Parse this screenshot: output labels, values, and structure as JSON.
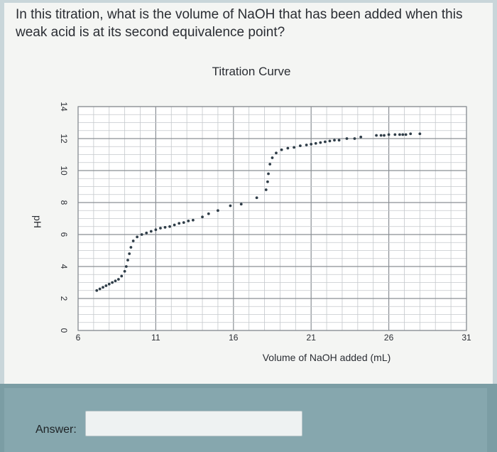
{
  "question": {
    "text": "In this titration, what is the volume of NaOH that has been added when this weak acid is at its second equivalence point?"
  },
  "answer": {
    "label": "Answer:",
    "value": ""
  },
  "colors": {
    "data_points": "#2f3d48",
    "grid_minor": "#c4c8cc",
    "grid_major": "#8a8f95",
    "panel": "#f4f5f3",
    "answer_panel": "#7b9da4"
  },
  "chart_data": {
    "type": "scatter",
    "title": "Titration Curve",
    "xlabel": "Volume of NaOH added (mL)",
    "ylabel": "pH",
    "xlim": [
      6,
      31
    ],
    "ylim": [
      0,
      14
    ],
    "xticks": [
      "6",
      "11",
      "16",
      "21",
      "26",
      "31"
    ],
    "yticks": [
      "0",
      "2",
      "4",
      "6",
      "8",
      "10",
      "12",
      "14"
    ],
    "grid": true,
    "series": [
      {
        "points": [
          [
            7.2,
            2.5
          ],
          [
            7.4,
            2.6
          ],
          [
            7.6,
            2.7
          ],
          [
            7.8,
            2.8
          ],
          [
            8.0,
            2.9
          ],
          [
            8.2,
            3.0
          ],
          [
            8.4,
            3.1
          ],
          [
            8.6,
            3.2
          ],
          [
            8.8,
            3.4
          ],
          [
            9.0,
            3.7
          ],
          [
            9.1,
            4.0
          ],
          [
            9.2,
            4.4
          ],
          [
            9.3,
            4.8
          ],
          [
            9.4,
            5.2
          ],
          [
            9.55,
            5.6
          ],
          [
            9.8,
            5.85
          ],
          [
            10.1,
            6.0
          ],
          [
            10.4,
            6.1
          ],
          [
            10.7,
            6.2
          ],
          [
            11.0,
            6.3
          ],
          [
            11.3,
            6.4
          ],
          [
            11.6,
            6.45
          ],
          [
            11.9,
            6.5
          ],
          [
            12.2,
            6.6
          ],
          [
            12.5,
            6.7
          ],
          [
            12.8,
            6.75
          ],
          [
            13.1,
            6.85
          ],
          [
            13.4,
            6.9
          ],
          [
            14.0,
            7.1
          ],
          [
            14.4,
            7.3
          ],
          [
            15.0,
            7.5
          ],
          [
            15.8,
            7.8
          ],
          [
            16.5,
            7.9
          ],
          [
            17.5,
            8.3
          ],
          [
            18.1,
            8.8
          ],
          [
            18.2,
            9.3
          ],
          [
            18.25,
            9.8
          ],
          [
            18.35,
            10.4
          ],
          [
            18.5,
            10.8
          ],
          [
            18.75,
            11.1
          ],
          [
            19.1,
            11.3
          ],
          [
            19.5,
            11.4
          ],
          [
            19.9,
            11.45
          ],
          [
            20.3,
            11.55
          ],
          [
            20.7,
            11.6
          ],
          [
            21.0,
            11.65
          ],
          [
            21.3,
            11.7
          ],
          [
            21.6,
            11.75
          ],
          [
            21.9,
            11.8
          ],
          [
            22.2,
            11.85
          ],
          [
            22.5,
            11.9
          ],
          [
            22.8,
            11.9
          ],
          [
            23.3,
            12.0
          ],
          [
            23.8,
            12.0
          ],
          [
            24.2,
            12.1
          ],
          [
            25.2,
            12.2
          ],
          [
            25.5,
            12.2
          ],
          [
            25.7,
            12.2
          ],
          [
            26.0,
            12.25
          ],
          [
            26.4,
            12.25
          ],
          [
            26.7,
            12.25
          ],
          [
            26.9,
            12.25
          ],
          [
            27.1,
            12.25
          ],
          [
            27.4,
            12.3
          ],
          [
            28.0,
            12.3
          ]
        ]
      }
    ]
  }
}
